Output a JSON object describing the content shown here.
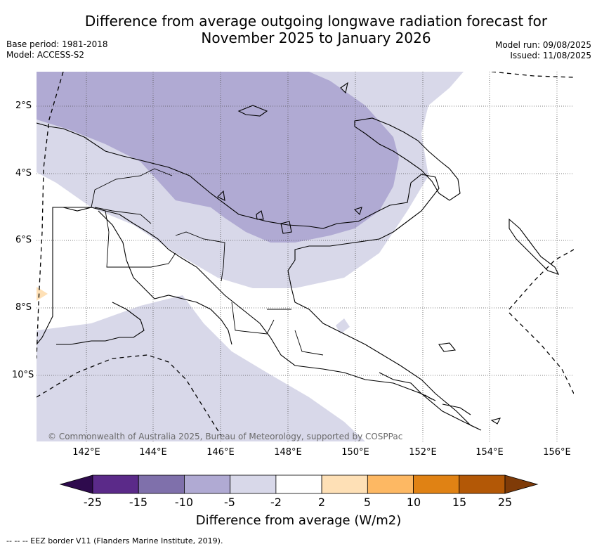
{
  "header": {
    "title_line1": "Difference from average outgoing longwave radiation forecast for",
    "title_line2": "November 2025 to January 2026",
    "base_period": "Base period: 1981-2018",
    "model": "Model: ACCESS-S2",
    "model_run": "Model run: 09/08/2025",
    "issued": "Issued: 11/08/2025"
  },
  "map": {
    "copyright": "© Commonwealth of Australia 2025, Bureau of Meteorology, supported by COSPPac",
    "lat_labels": [
      "2°S",
      "4°S",
      "6°S",
      "8°S",
      "10°S"
    ],
    "lon_labels": [
      "142°E",
      "144°E",
      "146°E",
      "148°E",
      "150°E",
      "152°E",
      "154°E",
      "156°E"
    ],
    "colors": {
      "anomaly_minus5": "#d8d8e9",
      "anomaly_minus10": "#b0aad3",
      "anomaly_plus2": "#fee0b6",
      "land_outline": "#000000",
      "grid": "#555555"
    }
  },
  "colorbar": {
    "title": "Difference from average (W/m2)",
    "ticks": [
      "-25",
      "-15",
      "-10",
      "-5",
      "-2",
      "2",
      "5",
      "10",
      "15",
      "25"
    ],
    "colors": [
      "#2e0a4d",
      "#5b2a89",
      "#7f70ab",
      "#b0aad3",
      "#d8d8e9",
      "#ffffff",
      "#fee0b6",
      "#fdb863",
      "#e08214",
      "#b35806",
      "#7f3b08"
    ]
  },
  "footnote": "--  --  -- EEZ border V11 (Flanders Marine Institute, 2019)."
}
